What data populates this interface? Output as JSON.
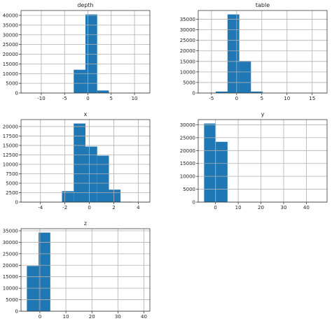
{
  "chart_data": [
    {
      "type": "histogram",
      "title": "depth",
      "bins": [
        -13.09,
        -10.58,
        -8.06,
        -5.55,
        -3.04,
        -0.53,
        1.99,
        4.5,
        7.01,
        9.53,
        12.04
      ],
      "values": [
        3,
        0,
        7,
        56,
        12000,
        40500,
        1300,
        30,
        0,
        4
      ],
      "color": "#1f77b4",
      "xlim": [
        -14.35,
        13.3
      ],
      "xticks": [
        -10,
        -5,
        0,
        5,
        10
      ],
      "ylim": [
        0,
        42525
      ],
      "yticks": [
        0,
        5000,
        10000,
        15000,
        20000,
        25000,
        30000,
        35000,
        40000
      ],
      "grid": true
    },
    {
      "type": "histogram",
      "title": "table",
      "bins": [
        -6.47,
        -4.14,
        -1.81,
        0.52,
        2.84,
        5.17,
        7.5,
        9.83,
        12.16,
        14.48,
        16.8
      ],
      "values": [
        3,
        700,
        37300,
        15200,
        700,
        20,
        2,
        0,
        0,
        1
      ],
      "color": "#1f77b4",
      "xlim": [
        -7.63,
        17.96
      ],
      "xticks": [
        -5,
        0,
        5,
        10,
        15
      ],
      "ylim": [
        0,
        39165
      ],
      "yticks": [
        0,
        5000,
        10000,
        15000,
        20000,
        25000,
        30000,
        35000
      ],
      "grid": true
    },
    {
      "type": "histogram",
      "title": "x",
      "bins": [
        -5.11,
        -4.15,
        -3.19,
        -2.24,
        -1.28,
        -0.32,
        0.64,
        1.6,
        2.55,
        3.51,
        4.47
      ],
      "values": [
        8,
        0,
        0,
        2900,
        20800,
        14700,
        12300,
        3300,
        100,
        20
      ],
      "color": "#1f77b4",
      "xlim": [
        -5.59,
        4.95
      ],
      "xticks": [
        -4,
        -2,
        0,
        2,
        4
      ],
      "ylim": [
        0,
        21840
      ],
      "yticks": [
        0,
        2500,
        5000,
        7500,
        10000,
        12500,
        15000,
        17500,
        20000
      ],
      "grid": true
    },
    {
      "type": "histogram",
      "title": "y",
      "bins": [
        -5.02,
        0.14,
        5.3,
        10.45,
        15.61,
        20.77,
        25.93,
        31.08,
        36.24,
        41.4,
        46.55
      ],
      "values": [
        30500,
        23400,
        0,
        0,
        0,
        0,
        0,
        0,
        0,
        2
      ],
      "color": "#1f77b4",
      "xlim": [
        -7.6,
        49.13
      ],
      "xticks": [
        0,
        10,
        20,
        30,
        40
      ],
      "ylim": [
        0,
        32025
      ],
      "yticks": [
        0,
        5000,
        10000,
        15000,
        20000,
        25000,
        30000
      ],
      "grid": true
    },
    {
      "type": "histogram",
      "title": "z",
      "bins": [
        -5.01,
        -0.5,
        4.0,
        8.51,
        13.02,
        17.52,
        22.03,
        26.53,
        31.04,
        35.55,
        40.05
      ],
      "values": [
        19700,
        34200,
        0,
        0,
        0,
        0,
        0,
        0,
        0,
        1
      ],
      "color": "#1f77b4",
      "xlim": [
        -7.26,
        42.3
      ],
      "xticks": [
        0,
        10,
        20,
        30,
        40
      ],
      "ylim": [
        0,
        35910
      ],
      "yticks": [
        0,
        5000,
        10000,
        15000,
        20000,
        25000,
        30000,
        35000
      ],
      "grid": true
    }
  ]
}
